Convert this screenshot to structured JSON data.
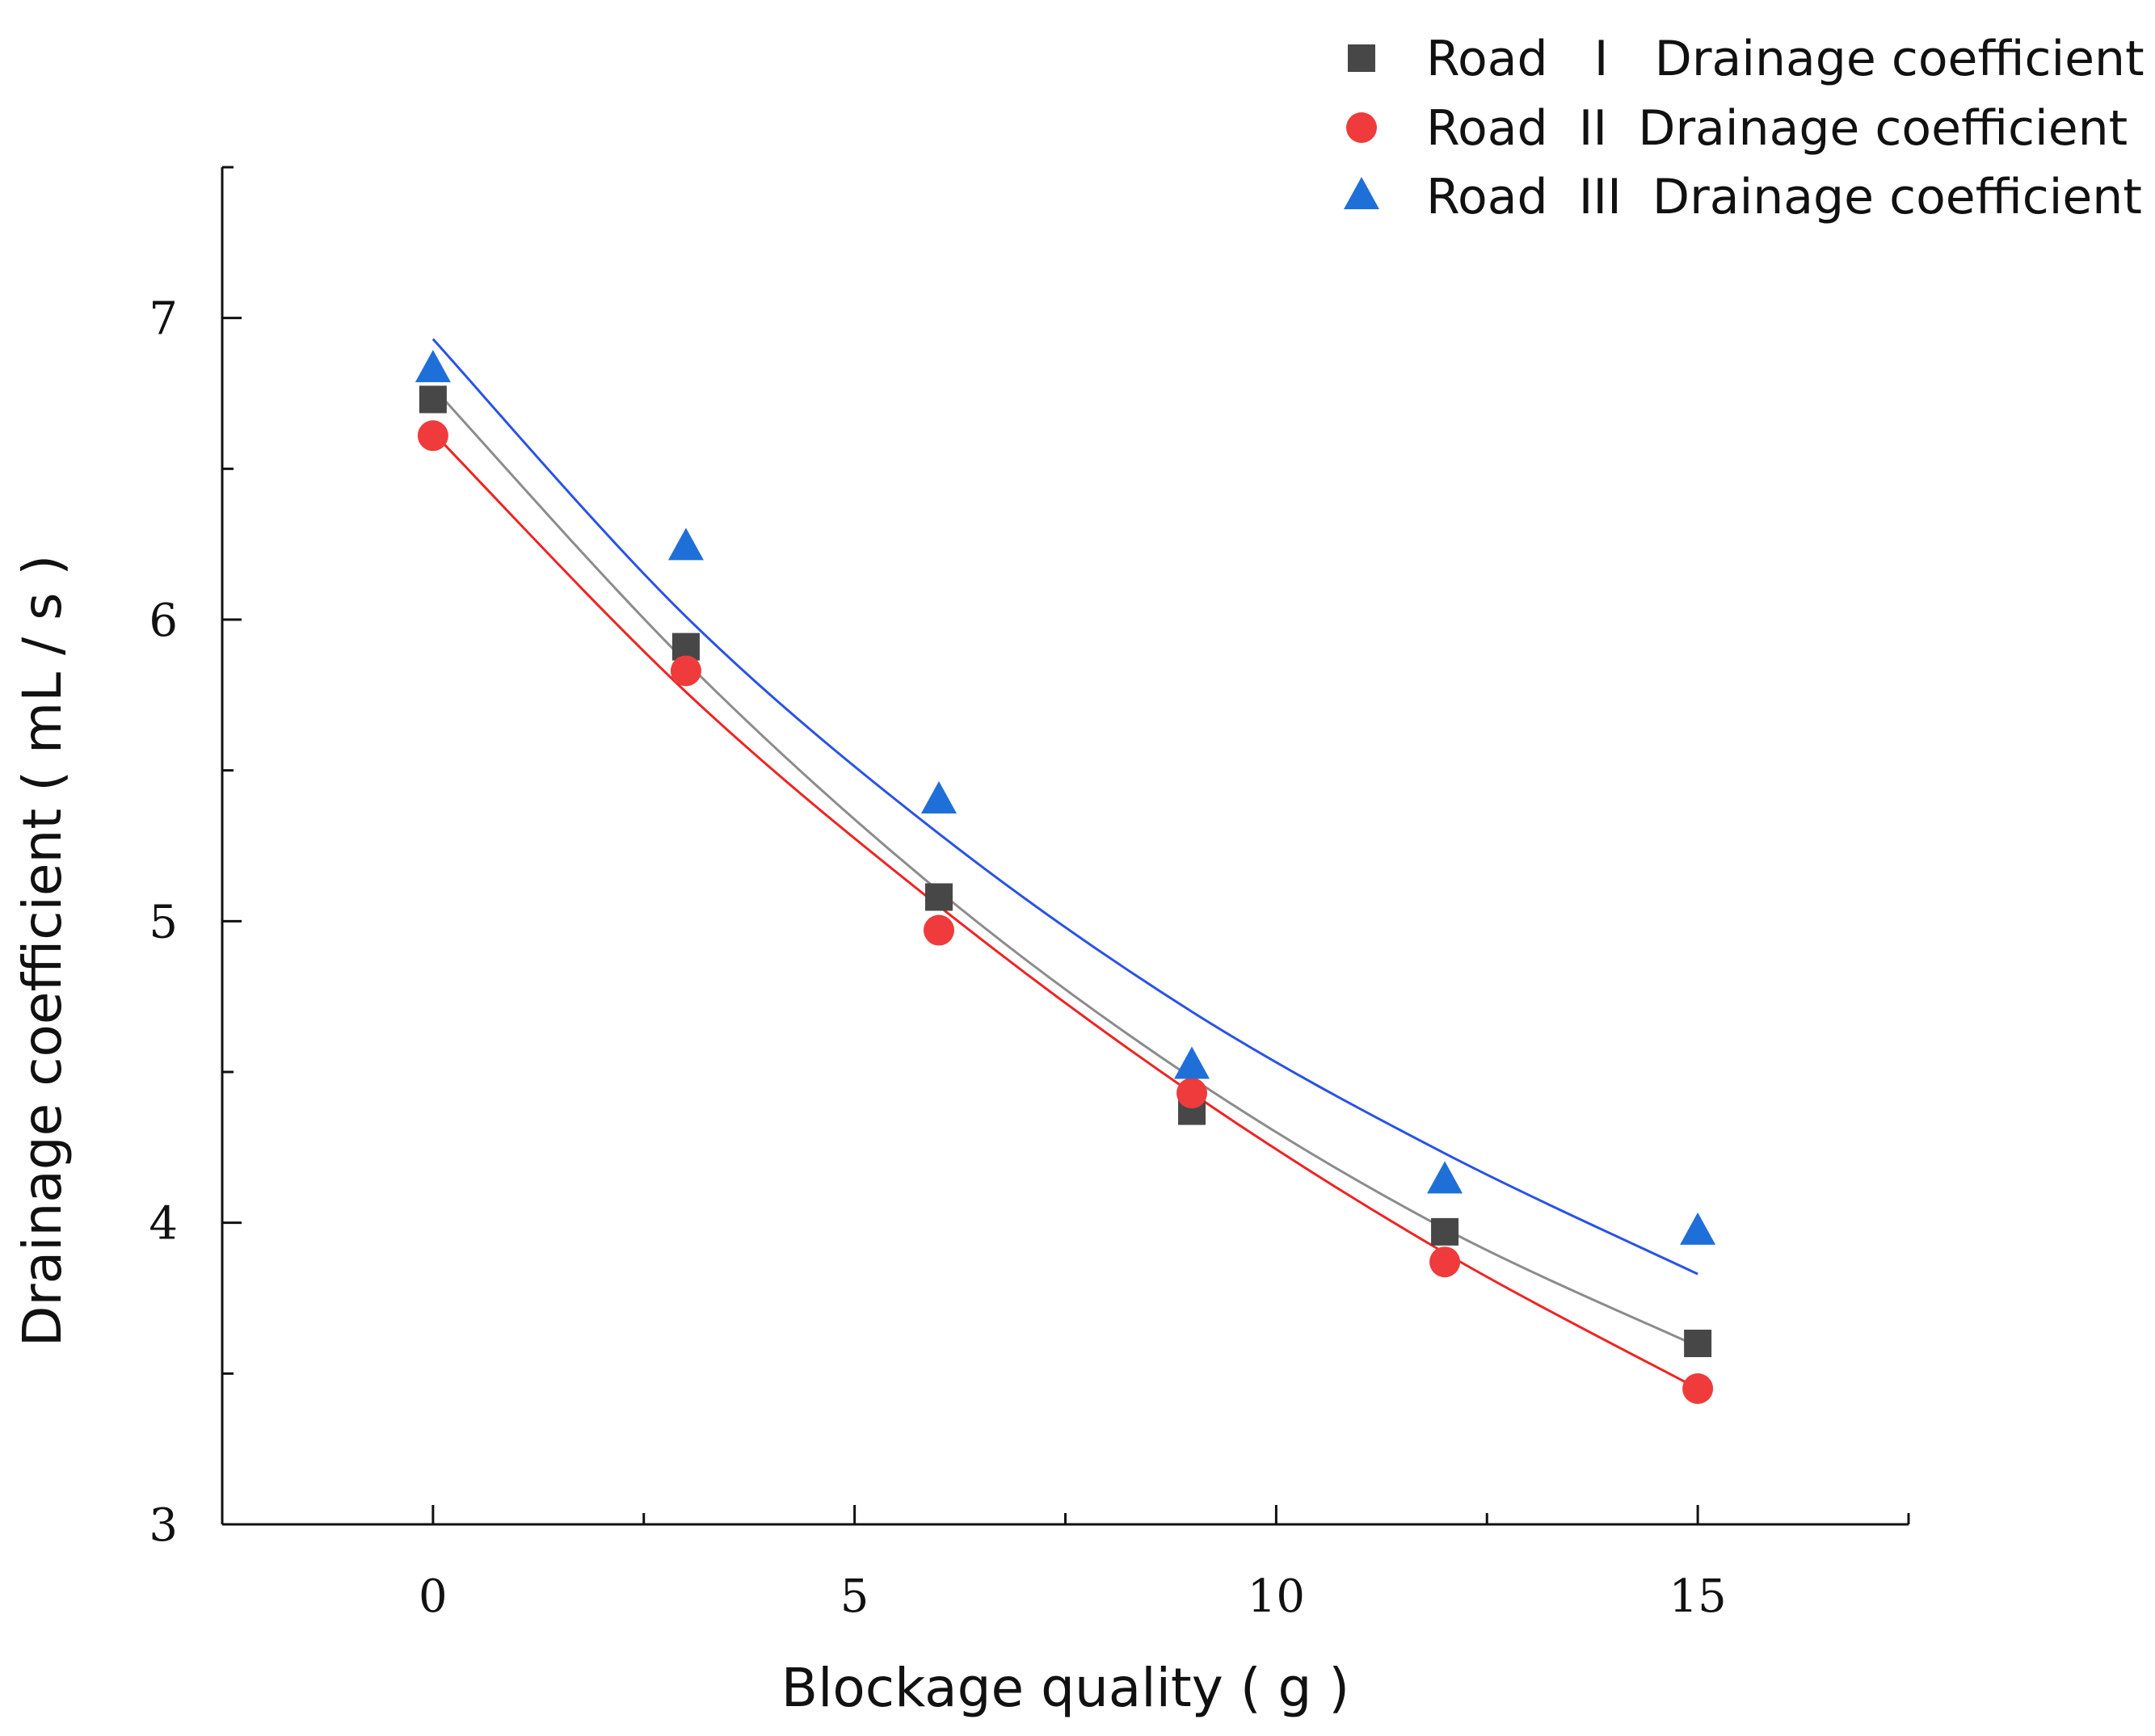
{
  "chart_data": {
    "type": "scatter",
    "title": "",
    "xlabel": "Blockage quality ( g )",
    "ylabel": "Drainage coefficient ( mL / s )",
    "xlim": [
      -2.5,
      17.5
    ],
    "ylim": [
      3,
      7.5
    ],
    "x_ticks": [
      0,
      5,
      10,
      15
    ],
    "y_ticks": [
      3,
      4,
      5,
      6,
      7
    ],
    "x_tick_labels": [
      "0",
      "5",
      "10",
      "15"
    ],
    "y_tick_labels": [
      "3",
      "4",
      "5",
      "6",
      "7"
    ],
    "x": [
      0,
      3,
      6,
      9,
      12,
      15
    ],
    "grid": false,
    "legend_position": "top-right",
    "series": [
      {
        "name": "Road   I   Drainage coefficient",
        "marker": "square",
        "color": "#474747",
        "line_color": "#8c8c8c",
        "values": [
          6.73,
          5.91,
          5.08,
          4.37,
          3.97,
          3.6
        ],
        "fit": [
          6.77,
          5.86,
          5.1,
          4.48,
          3.98,
          3.59
        ]
      },
      {
        "name": "Road  II  Drainage coefficient",
        "marker": "circle",
        "color": "#ef3b3b",
        "line_color": "#ef2323",
        "values": [
          6.61,
          5.83,
          4.97,
          4.43,
          3.87,
          3.45
        ],
        "fit": [
          6.62,
          5.76,
          5.05,
          4.43,
          3.9,
          3.45
        ]
      },
      {
        "name": "Road  III  Drainage coefficient",
        "marker": "triangle",
        "color": "#1f6fd8",
        "line_color": "#2a52e6",
        "values": [
          6.83,
          6.24,
          5.4,
          4.52,
          4.14,
          3.97
        ],
        "fit": [
          6.93,
          6.01,
          5.29,
          4.7,
          4.23,
          3.83
        ]
      }
    ]
  }
}
